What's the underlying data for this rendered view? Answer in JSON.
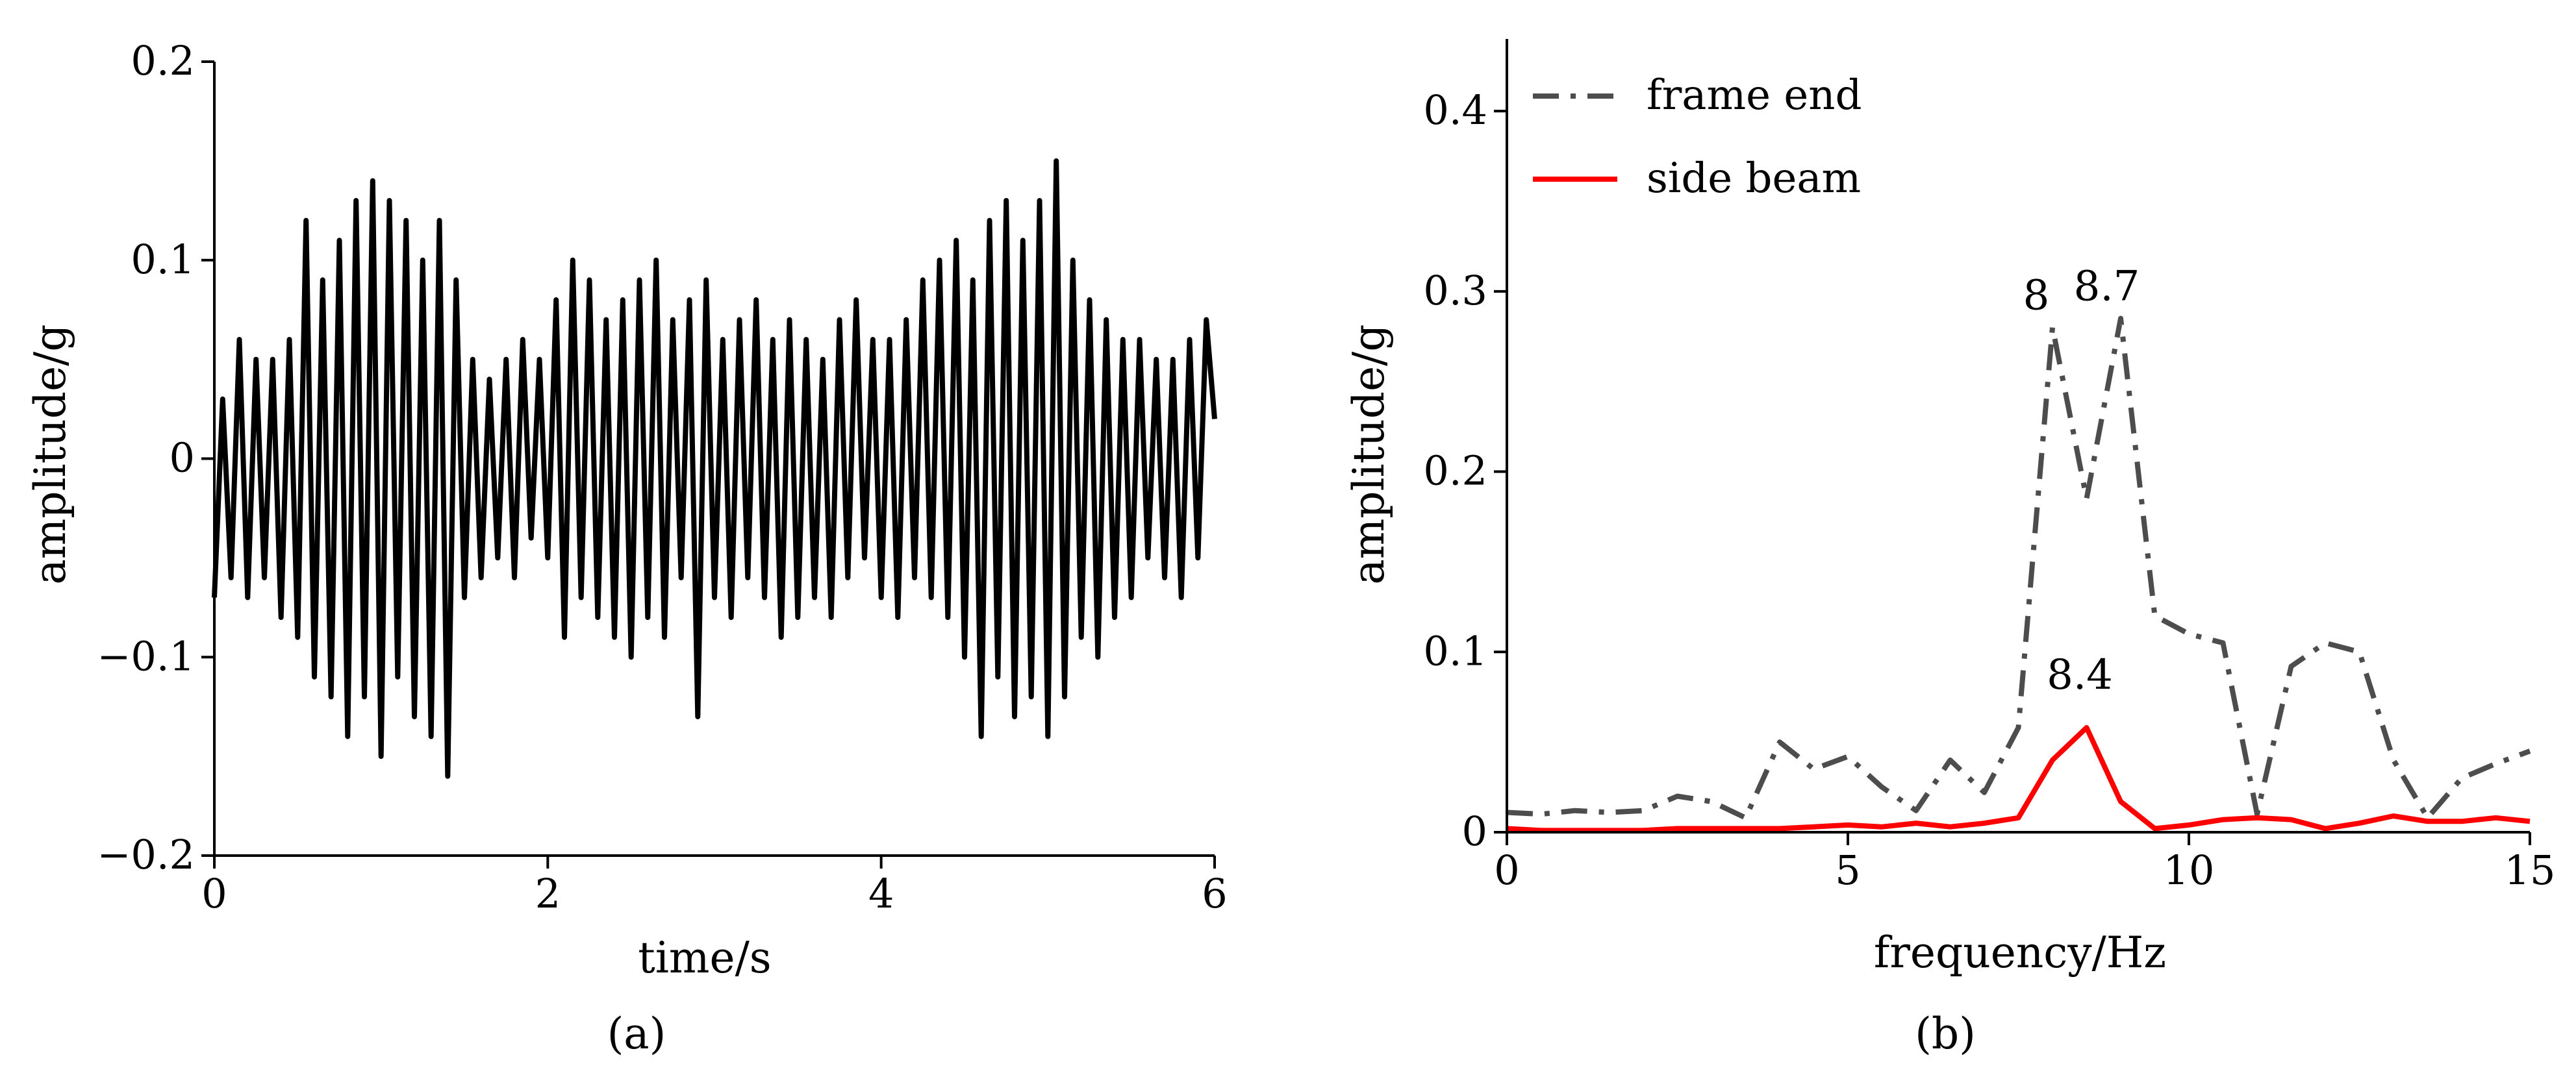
{
  "panels": {
    "a": {
      "label": "(a)"
    },
    "b": {
      "label": "(b)"
    }
  },
  "chart_data": [
    {
      "type": "line",
      "panel": "a",
      "xlabel": "time/s",
      "ylabel": "amplitude/g",
      "xlim": [
        0,
        6
      ],
      "ylim": [
        -0.2,
        0.2
      ],
      "xticks": [
        0,
        2,
        4,
        6
      ],
      "xtick_labels": [
        "0",
        "2",
        "4",
        "6"
      ],
      "yticks": [
        -0.2,
        -0.1,
        0,
        0.1,
        0.2
      ],
      "ytick_labels": [
        "−0.2",
        "−0.1",
        "0",
        "0.1",
        "0.2"
      ],
      "grid": false,
      "series": [
        {
          "color": "#000000",
          "x": [
            0.0,
            0.05,
            0.1,
            0.15,
            0.2,
            0.25,
            0.3,
            0.35,
            0.4,
            0.45,
            0.5,
            0.55,
            0.6,
            0.65,
            0.7,
            0.75,
            0.8,
            0.85,
            0.9,
            0.95,
            1.0,
            1.05,
            1.1,
            1.15,
            1.2,
            1.25,
            1.3,
            1.35,
            1.4,
            1.45,
            1.5,
            1.55,
            1.6,
            1.65,
            1.7,
            1.75,
            1.8,
            1.85,
            1.9,
            1.95,
            2.0,
            2.05,
            2.1,
            2.15,
            2.2,
            2.25,
            2.3,
            2.35,
            2.4,
            2.45,
            2.5,
            2.55,
            2.6,
            2.65,
            2.7,
            2.75,
            2.8,
            2.85,
            2.9,
            2.95,
            3.0,
            3.05,
            3.1,
            3.15,
            3.2,
            3.25,
            3.3,
            3.35,
            3.4,
            3.45,
            3.5,
            3.55,
            3.6,
            3.65,
            3.7,
            3.75,
            3.8,
            3.85,
            3.9,
            3.95,
            4.0,
            4.05,
            4.1,
            4.15,
            4.2,
            4.25,
            4.3,
            4.35,
            4.4,
            4.45,
            4.5,
            4.55,
            4.6,
            4.65,
            4.7,
            4.75,
            4.8,
            4.85,
            4.9,
            4.95,
            5.0,
            5.05,
            5.1,
            5.15,
            5.2,
            5.25,
            5.3,
            5.35,
            5.4,
            5.45,
            5.5,
            5.55,
            5.6,
            5.65,
            5.7,
            5.75,
            5.8,
            5.85,
            5.9,
            5.95,
            6.0
          ],
          "values": [
            -0.07,
            0.03,
            -0.06,
            0.06,
            -0.07,
            0.05,
            -0.06,
            0.05,
            -0.08,
            0.06,
            -0.09,
            0.12,
            -0.11,
            0.09,
            -0.12,
            0.11,
            -0.14,
            0.13,
            -0.12,
            0.14,
            -0.15,
            0.13,
            -0.11,
            0.12,
            -0.13,
            0.1,
            -0.14,
            0.12,
            -0.16,
            0.09,
            -0.07,
            0.05,
            -0.06,
            0.04,
            -0.05,
            0.05,
            -0.06,
            0.06,
            -0.04,
            0.05,
            -0.05,
            0.08,
            -0.09,
            0.1,
            -0.07,
            0.09,
            -0.08,
            0.07,
            -0.09,
            0.08,
            -0.1,
            0.09,
            -0.08,
            0.1,
            -0.09,
            0.07,
            -0.06,
            0.08,
            -0.13,
            0.09,
            -0.07,
            0.06,
            -0.08,
            0.07,
            -0.06,
            0.08,
            -0.07,
            0.06,
            -0.09,
            0.07,
            -0.08,
            0.06,
            -0.07,
            0.05,
            -0.08,
            0.07,
            -0.06,
            0.08,
            -0.05,
            0.06,
            -0.07,
            0.06,
            -0.08,
            0.07,
            -0.06,
            0.09,
            -0.07,
            0.1,
            -0.08,
            0.11,
            -0.1,
            0.09,
            -0.14,
            0.12,
            -0.11,
            0.13,
            -0.13,
            0.11,
            -0.12,
            0.13,
            -0.14,
            0.15,
            -0.12,
            0.1,
            -0.09,
            0.08,
            -0.1,
            0.07,
            -0.08,
            0.06,
            -0.07,
            0.06,
            -0.05,
            0.05,
            -0.06,
            0.05,
            -0.07,
            0.06,
            -0.05,
            0.07,
            0.02
          ]
        }
      ]
    },
    {
      "type": "line",
      "panel": "b",
      "xlabel": "frequency/Hz",
      "ylabel": "amplitude/g",
      "xlim": [
        0,
        15
      ],
      "ylim": [
        0,
        0.44
      ],
      "xticks": [
        0,
        5,
        10,
        15
      ],
      "xtick_labels": [
        "0",
        "5",
        "10",
        "15"
      ],
      "yticks": [
        0,
        0.1,
        0.2,
        0.3,
        0.4
      ],
      "ytick_labels": [
        "0",
        "0.1",
        "0.2",
        "0.3",
        "0.4"
      ],
      "grid": false,
      "legend": {
        "placement": "top-left"
      },
      "series": [
        {
          "name": "frame end",
          "color": "#4d4d4d",
          "style": "dashdot",
          "x": [
            0,
            0.5,
            1,
            1.5,
            2,
            2.5,
            3,
            3.5,
            4,
            4.5,
            5,
            5.5,
            6,
            6.5,
            7,
            7.5,
            8,
            8.5,
            9,
            9.5,
            10,
            10.5,
            11,
            11.5,
            12,
            12.5,
            13,
            13.5,
            14,
            14.5,
            15
          ],
          "values": [
            0.011,
            0.01,
            0.012,
            0.011,
            0.012,
            0.02,
            0.017,
            0.008,
            0.05,
            0.035,
            0.042,
            0.025,
            0.012,
            0.04,
            0.022,
            0.058,
            0.28,
            0.185,
            0.285,
            0.12,
            0.11,
            0.105,
            0.01,
            0.092,
            0.105,
            0.1,
            0.04,
            0.008,
            0.03,
            0.038,
            0.045
          ]
        },
        {
          "name": "side beam",
          "color": "#ff0000",
          "style": "solid",
          "x": [
            0,
            0.5,
            1,
            1.5,
            2,
            2.5,
            3,
            3.5,
            4,
            4.5,
            5,
            5.5,
            6,
            6.5,
            7,
            7.5,
            8,
            8.5,
            9,
            9.5,
            10,
            10.5,
            11,
            11.5,
            12,
            12.5,
            13,
            13.5,
            14,
            14.5,
            15
          ],
          "values": [
            0.002,
            0.001,
            0.001,
            0.001,
            0.001,
            0.002,
            0.002,
            0.002,
            0.002,
            0.003,
            0.004,
            0.003,
            0.005,
            0.003,
            0.005,
            0.008,
            0.04,
            0.058,
            0.017,
            0.002,
            0.004,
            0.007,
            0.008,
            0.007,
            0.002,
            0.005,
            0.009,
            0.006,
            0.006,
            0.008,
            0.006
          ]
        }
      ],
      "annotations": [
        {
          "text": "8",
          "x": 8.0,
          "y": 0.28
        },
        {
          "text": "8.7",
          "x": 8.7,
          "y": 0.285
        },
        {
          "text": "8.4",
          "x": 8.4,
          "y": 0.058
        }
      ]
    }
  ]
}
